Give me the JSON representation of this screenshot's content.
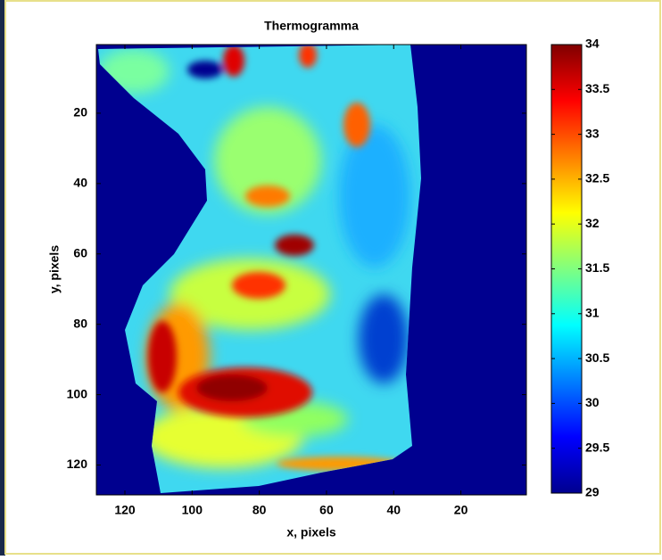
{
  "chart_data": {
    "type": "heatmap",
    "title": "Thermogramma",
    "xlabel": "x, pixels",
    "ylabel": "y, pixels",
    "xlim": [
      128.5,
      0.5
    ],
    "xticks": [
      120,
      100,
      80,
      60,
      40,
      20
    ],
    "ylim": [
      128.5,
      0.5
    ],
    "yticks": [
      20,
      40,
      60,
      80,
      100,
      120
    ],
    "colormap": "jet",
    "clim": [
      29,
      34
    ],
    "cticks": [
      29,
      29.5,
      30,
      30.5,
      31,
      31.5,
      32,
      32.5,
      33,
      33.5,
      34
    ]
  }
}
